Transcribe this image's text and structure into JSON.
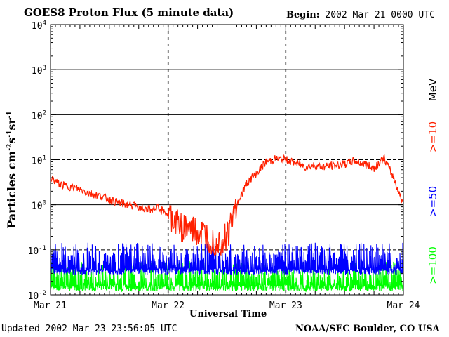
{
  "header": {
    "title": "GOES8 Proton Flux (5 minute data)",
    "begin_label": "Begin:",
    "begin_value": "2002 Mar 21 0000 UTC"
  },
  "footer": {
    "updated": "Updated 2002 Mar 23 23:56:05 UTC",
    "credit": "NOAA/SEC Boulder, CO USA"
  },
  "colors": {
    "ge10": "#ff2000",
    "ge50": "#0000ff",
    "ge100": "#00ff00",
    "axes": "#000000"
  },
  "chart_data": {
    "type": "line",
    "title": "GOES8 Proton Flux (5 minute data)",
    "xlabel": "Universal Time",
    "ylabel": "Particles cm⁻²s⁻¹sr⁻¹",
    "yscale": "log",
    "ylim": [
      0.01,
      10000
    ],
    "xlim": [
      0,
      72
    ],
    "x_units": "hours since 2002 Mar 21 0000 UTC",
    "x_tick_labels": [
      "Mar 21",
      "Mar 22",
      "Mar 23",
      "Mar 24"
    ],
    "y_tick_labels": [
      {
        "base": "10",
        "exp": "-2"
      },
      {
        "base": "10",
        "exp": "-1"
      },
      {
        "base": "10",
        "exp": "0"
      },
      {
        "base": "10",
        "exp": "1"
      },
      {
        "base": "10",
        "exp": "2"
      },
      {
        "base": "10",
        "exp": "3"
      },
      {
        "base": "10",
        "exp": "4"
      }
    ],
    "right_labels": {
      "units": "MeV",
      "ge10": ">=10",
      "ge50": ">=50",
      "ge100": ">=100"
    },
    "series": [
      {
        "name": ">=10",
        "color": "#ff2000",
        "x": [
          0,
          2,
          4,
          6,
          8,
          10,
          12,
          14,
          16,
          18,
          20,
          22,
          24,
          26,
          28,
          30,
          32,
          34,
          36,
          38,
          40,
          42,
          44,
          46,
          48,
          50,
          52,
          54,
          56,
          58,
          60,
          62,
          64,
          66,
          68,
          70,
          72
        ],
        "values": [
          4,
          2.8,
          2.5,
          2.2,
          1.8,
          1.6,
          1.3,
          1.1,
          1.0,
          0.9,
          0.8,
          0.85,
          0.6,
          0.35,
          0.3,
          0.25,
          0.2,
          0.15,
          0.2,
          1.0,
          3.0,
          5.0,
          9.0,
          10.5,
          10.0,
          8.5,
          7.0,
          7.5,
          7.0,
          7.5,
          8.0,
          9.5,
          8.0,
          6.5,
          11.0,
          4.0,
          1.0
        ]
      },
      {
        "name": ">=50",
        "color": "#0000ff",
        "x": [
          0,
          72
        ],
        "values": [
          0.045,
          0.045
        ],
        "range_lo": 0.028,
        "range_hi": 0.09
      },
      {
        "name": ">=100",
        "color": "#00ff00",
        "x": [
          0,
          72
        ],
        "values": [
          0.02,
          0.02
        ],
        "range_lo": 0.012,
        "range_hi": 0.035
      }
    ]
  }
}
